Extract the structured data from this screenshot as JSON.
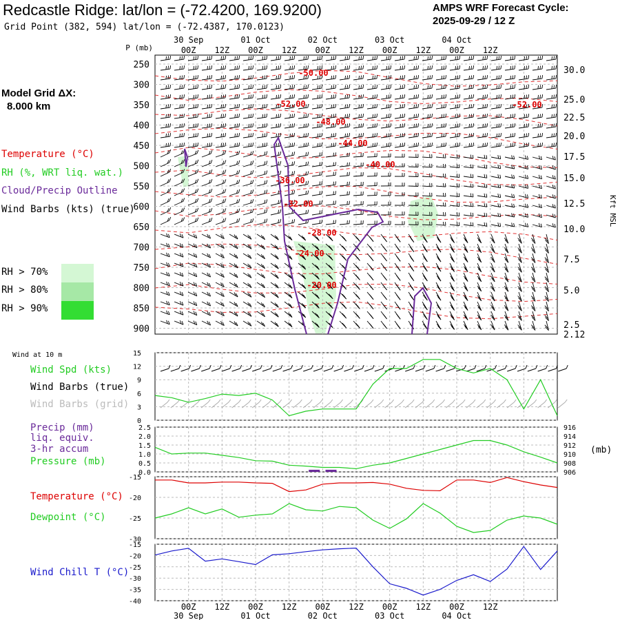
{
  "header": {
    "title": "Redcastle Ridge:  lat/lon = (-72.4200, 169.9200)",
    "grid_point": "Grid Point (382, 594) lat/lon = (-72.4387, 170.0123)",
    "cycle_line1": "AMPS WRF Forecast Cycle:",
    "cycle_line2": "2025-09-29 / 12  Z"
  },
  "model_grid": {
    "line1": "Model Grid ΔX:",
    "line2": "8.000 km"
  },
  "colors": {
    "temperature": "#dd0000",
    "rh": "#22cc22",
    "cloud": "#6a2a9a",
    "wind_barb": "#000000",
    "wind_barb_grid": "#aaaaaa",
    "rh70": "#d4f7d4",
    "rh80": "#a6e8a6",
    "rh90": "#33dd33",
    "pressure": "#22cc22",
    "dewpoint": "#22cc22",
    "windchill": "#1a1acc"
  },
  "time_axis": {
    "top_ticks": [
      "00Z",
      "12Z",
      "00Z",
      "12Z",
      "00Z",
      "12Z",
      "00Z",
      "12Z",
      "00Z",
      "12Z"
    ],
    "dates": [
      "30 Sep",
      "01 Oct",
      "02 Oct",
      "03 Oct",
      "04 Oct"
    ],
    "bottom_ticks": [
      "00Z",
      "12Z",
      "00Z",
      "12Z",
      "00Z",
      "12Z",
      "00Z",
      "12Z",
      "00Z",
      "12Z"
    ]
  },
  "cross_section": {
    "p_label": "P (mb)",
    "pressure_levels": [
      "250",
      "300",
      "350",
      "400",
      "450",
      "500",
      "550",
      "600",
      "650",
      "700",
      "750",
      "800",
      "850",
      "900"
    ],
    "height_labels": [
      "30.0",
      "25.0",
      "22.5",
      "20.0",
      "17.5",
      "15.0",
      "12.5",
      "10.0",
      "7.5",
      "5.0",
      "2.5",
      "2.12"
    ],
    "height_axis_label": "Kft MSL",
    "legend": {
      "temperature": "Temperature (°C)",
      "rh": "RH (%, WRT liq. wat.)",
      "cloud": "Cloud/Precip Outline",
      "barbs": "Wind Barbs (kts) (true)",
      "rh70": "RH > 70%",
      "rh80": "RH > 80%",
      "rh90": "RH > 90%"
    },
    "isotherm_labels": [
      "-50.00",
      "-52.00",
      "-48.00",
      "-44.00",
      "-40.00",
      "-36.00",
      "-32.00",
      "-28.00",
      "-24.00",
      "-20.00",
      "-52.00"
    ]
  },
  "wind_panel": {
    "title": "Wind at 10 m",
    "labels": {
      "speed": "Wind Spd (kts)",
      "barbs_true": "Wind Barbs (true)",
      "barbs_grid": "Wind Barbs (grid)"
    },
    "yticks": [
      "15",
      "12",
      "9",
      "6",
      "3",
      "0"
    ]
  },
  "precip_panel": {
    "labels": {
      "l1": "Precip (mm)",
      "l2": "liq. equiv.",
      "l3": "3-hr accum",
      "l4": "Pressure (mb)"
    },
    "yticks_left": [
      "2.5",
      "2.0",
      "1.5",
      "1.0",
      "0.5",
      "0.0"
    ],
    "yticks_right": [
      "916",
      "914",
      "912",
      "910",
      "908",
      "906"
    ],
    "right_unit": "(mb)"
  },
  "temp_panel": {
    "labels": {
      "temp": "Temperature (°C)",
      "dew": "Dewpoint (°C)"
    },
    "yticks": [
      "-15",
      "-20",
      "-25",
      "-30"
    ]
  },
  "chill_panel": {
    "label": "Wind Chill T (°C)",
    "yticks": [
      "-15",
      "-20",
      "-25",
      "-30",
      "-35",
      "-40"
    ]
  },
  "chart_data": [
    {
      "type": "line",
      "title": "Wind at 10 m",
      "series": [
        {
          "name": "Wind Spd (kts)",
          "x_hours": [
            0,
            6,
            12,
            18,
            24,
            30,
            36,
            42,
            48,
            54,
            60,
            66,
            72,
            78,
            84,
            90,
            96,
            102,
            108,
            114,
            120,
            126,
            132,
            138,
            144
          ],
          "values": [
            5.5,
            5,
            4,
            4.8,
            5.8,
            5.5,
            6,
            4.5,
            1,
            2,
            2.5,
            2.5,
            2.5,
            8,
            11.5,
            11.5,
            13.5,
            13.5,
            11.5,
            10.5,
            11.5,
            9,
            2.5,
            9,
            1
          ]
        }
      ],
      "ylim": [
        0,
        15
      ]
    },
    {
      "type": "line",
      "series": [
        {
          "name": "Pressure (mb)",
          "x_hours": [
            0,
            6,
            12,
            18,
            24,
            30,
            36,
            42,
            48,
            54,
            60,
            66,
            72,
            78,
            84,
            90,
            96,
            102,
            108,
            114,
            120,
            126,
            132,
            138,
            144
          ],
          "values": [
            911.5,
            910,
            910.2,
            910.2,
            909.7,
            909.2,
            908.5,
            908.4,
            907.5,
            907.3,
            907,
            907,
            906.7,
            907.5,
            908,
            909,
            910,
            911,
            912,
            913,
            913,
            912,
            910.5,
            909.3,
            908
          ],
          "ylim": [
            906,
            916
          ]
        },
        {
          "name": "Precip (mm)",
          "x_hours": [
            57,
            63
          ],
          "values": [
            0.12,
            0.12
          ],
          "ylim": [
            0,
            2.5
          ]
        }
      ]
    },
    {
      "type": "line",
      "series": [
        {
          "name": "Temperature (°C)",
          "x_hours": [
            0,
            6,
            12,
            18,
            24,
            30,
            36,
            42,
            48,
            54,
            60,
            66,
            72,
            78,
            84,
            90,
            96,
            102,
            108,
            114,
            120,
            126,
            132,
            138,
            144
          ],
          "values": [
            -15.8,
            -15.8,
            -16.5,
            -16.5,
            -16.3,
            -16.3,
            -16.5,
            -16.6,
            -18.6,
            -18.2,
            -16.8,
            -16.5,
            -16.5,
            -16.4,
            -16.8,
            -17.8,
            -18.3,
            -18.4,
            -15.8,
            -15.8,
            -16.4,
            -15.2,
            -16.2,
            -17,
            -17.6
          ]
        },
        {
          "name": "Dewpoint (°C)",
          "x_hours": [
            0,
            6,
            12,
            18,
            24,
            30,
            36,
            42,
            48,
            54,
            60,
            66,
            72,
            78,
            84,
            90,
            96,
            102,
            108,
            114,
            120,
            126,
            132,
            138,
            144
          ],
          "values": [
            -25,
            -24,
            -22.5,
            -24,
            -22.8,
            -24.8,
            -24.3,
            -24,
            -21.5,
            -23,
            -23.3,
            -22.2,
            -22.5,
            -25.5,
            -27.5,
            -25.2,
            -21.5,
            -23.8,
            -27,
            -28.5,
            -28,
            -25.5,
            -24.5,
            -25,
            -26.5
          ]
        }
      ],
      "ylim": [
        -30,
        -15
      ]
    },
    {
      "type": "line",
      "series": [
        {
          "name": "Wind Chill T (°C)",
          "x_hours": [
            0,
            6,
            12,
            18,
            24,
            30,
            36,
            42,
            48,
            54,
            60,
            66,
            72,
            78,
            84,
            90,
            96,
            102,
            108,
            114,
            120,
            126,
            132,
            138,
            144
          ],
          "values": [
            -19.8,
            -18,
            -16.8,
            -22.5,
            -21.5,
            -22.7,
            -24,
            -19.7,
            -19.2,
            -18.3,
            -17.5,
            -17,
            -16.7,
            -25,
            -32.5,
            -34.5,
            -37.5,
            -35,
            -31,
            -28.5,
            -31.5,
            -26,
            -16,
            -26.2,
            -18
          ]
        }
      ],
      "ylim": [
        -40,
        -15
      ]
    }
  ]
}
